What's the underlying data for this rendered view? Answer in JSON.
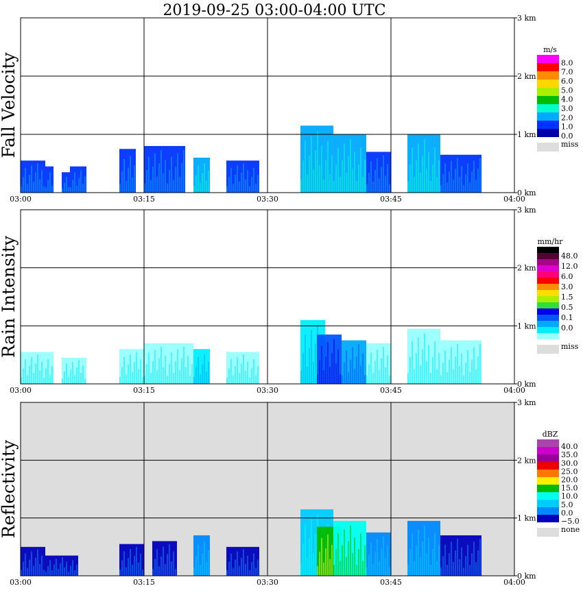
{
  "title": "2019-09-25   03:00-04:00 UTC",
  "time_ticks": [
    "03:00",
    "03:15",
    "03:30",
    "03:45",
    "04:00"
  ],
  "height_ticks": [
    "0 km",
    "1 km",
    "2 km",
    "3 km"
  ],
  "chart_data": [
    {
      "type": "heatmap",
      "ylabel": "Fall Velocity",
      "xlabel": "",
      "xlim": [
        "03:00",
        "04:00"
      ],
      "ylim_km": [
        0,
        3.0
      ],
      "grid": true,
      "colorbar": {
        "unit": "m/s",
        "labels": [
          "8.0",
          "7.0",
          "6.0",
          "5.0",
          "4.0",
          "3.0",
          "2.0",
          "1.0",
          "0.0"
        ],
        "colors": [
          "#ff00ff",
          "#ff0000",
          "#ff8c00",
          "#ffd700",
          "#aaee00",
          "#00bb00",
          "#00ffcc",
          "#00aaff",
          "#0033ff",
          "#0000aa"
        ],
        "missing_label": "miss",
        "missing_color": "#dddddd"
      },
      "echo_cells": [
        {
          "t0": "03:00",
          "t1": "03:03",
          "top_km": 0.55,
          "level": 1
        },
        {
          "t0": "03:03",
          "t1": "03:04",
          "top_km": 0.45,
          "level": 1
        },
        {
          "t0": "03:05",
          "t1": "03:06",
          "top_km": 0.35,
          "level": 1
        },
        {
          "t0": "03:06",
          "t1": "03:08",
          "top_km": 0.45,
          "level": 1
        },
        {
          "t0": "03:12",
          "t1": "03:14",
          "top_km": 0.75,
          "level": 1
        },
        {
          "t0": "03:15",
          "t1": "03:20",
          "top_km": 0.8,
          "level": 1
        },
        {
          "t0": "03:21",
          "t1": "03:23",
          "top_km": 0.6,
          "level": 2
        },
        {
          "t0": "03:25",
          "t1": "03:29",
          "top_km": 0.55,
          "level": 1
        },
        {
          "t0": "03:34",
          "t1": "03:38",
          "top_km": 1.15,
          "level": 2
        },
        {
          "t0": "03:38",
          "t1": "03:42",
          "top_km": 1.0,
          "level": 2
        },
        {
          "t0": "03:42",
          "t1": "03:45",
          "top_km": 0.7,
          "level": 1
        },
        {
          "t0": "03:47",
          "t1": "03:51",
          "top_km": 1.0,
          "level": 2
        },
        {
          "t0": "03:51",
          "t1": "03:56",
          "top_km": 0.65,
          "level": 1
        }
      ]
    },
    {
      "type": "heatmap",
      "ylabel": "Rain Intensity",
      "xlabel": "",
      "xlim": [
        "03:00",
        "04:00"
      ],
      "ylim_km": [
        0,
        3.0
      ],
      "grid": true,
      "colorbar": {
        "unit": "mm/hr",
        "labels": [
          "48.0",
          "12.0",
          "6.0",
          "3.0",
          "1.5",
          "0.5",
          "0.1",
          "0.0"
        ],
        "colors": [
          "#000000",
          "#550033",
          "#aa0088",
          "#dd00cc",
          "#ff0077",
          "#ff0000",
          "#ff8c00",
          "#ffdd00",
          "#aaee00",
          "#33dd33",
          "#0000ee",
          "#0055ff",
          "#00aaff",
          "#00eeff",
          "#99ffff"
        ],
        "missing_label": "miss",
        "missing_color": "#dddddd"
      },
      "echo_cells": [
        {
          "t0": "03:00",
          "t1": "03:04",
          "top_km": 0.55,
          "level": 0
        },
        {
          "t0": "03:05",
          "t1": "03:08",
          "top_km": 0.45,
          "level": 0
        },
        {
          "t0": "03:12",
          "t1": "03:15",
          "top_km": 0.6,
          "level": 0
        },
        {
          "t0": "03:15",
          "t1": "03:21",
          "top_km": 0.7,
          "level": 0
        },
        {
          "t0": "03:21",
          "t1": "03:23",
          "top_km": 0.6,
          "level": 1
        },
        {
          "t0": "03:25",
          "t1": "03:29",
          "top_km": 0.55,
          "level": 0
        },
        {
          "t0": "03:34",
          "t1": "03:37",
          "top_km": 1.1,
          "level": 1
        },
        {
          "t0": "03:36",
          "t1": "03:39",
          "top_km": 0.85,
          "level": 3
        },
        {
          "t0": "03:39",
          "t1": "03:42",
          "top_km": 0.75,
          "level": 2
        },
        {
          "t0": "03:42",
          "t1": "03:45",
          "top_km": 0.7,
          "level": 0
        },
        {
          "t0": "03:47",
          "t1": "03:51",
          "top_km": 0.95,
          "level": 0
        },
        {
          "t0": "03:51",
          "t1": "03:56",
          "top_km": 0.75,
          "level": 0
        }
      ]
    },
    {
      "type": "heatmap",
      "ylabel": "Reflectivity",
      "xlabel": "",
      "xlim": [
        "03:00",
        "04:00"
      ],
      "ylim_km": [
        0,
        3.0
      ],
      "grid": true,
      "colorbar": {
        "unit": "dBZ",
        "labels": [
          "40.0",
          "35.0",
          "30.0",
          "25.0",
          "20.0",
          "15.0",
          "10.0",
          "5.0",
          "0.0",
          "−5.0"
        ],
        "colors": [
          "#aa44aa",
          "#cc00cc",
          "#990099",
          "#ee0000",
          "#ff7700",
          "#ffee00",
          "#00bb00",
          "#00ffee",
          "#00ccff",
          "#0088ff",
          "#0000bb"
        ],
        "missing_label": "none",
        "missing_color": "#dddddd"
      },
      "echo_cells": [
        {
          "t0": "03:00",
          "t1": "03:03",
          "top_km": 0.5,
          "level": 0
        },
        {
          "t0": "03:03",
          "t1": "03:07",
          "top_km": 0.35,
          "level": 0
        },
        {
          "t0": "03:12",
          "t1": "03:15",
          "top_km": 0.55,
          "level": 0
        },
        {
          "t0": "03:16",
          "t1": "03:19",
          "top_km": 0.6,
          "level": 0
        },
        {
          "t0": "03:21",
          "t1": "03:23",
          "top_km": 0.7,
          "level": 1
        },
        {
          "t0": "03:25",
          "t1": "03:29",
          "top_km": 0.5,
          "level": 0
        },
        {
          "t0": "03:34",
          "t1": "03:38",
          "top_km": 1.15,
          "level": 2
        },
        {
          "t0": "03:36",
          "t1": "03:39",
          "top_km": 0.85,
          "level": 4
        },
        {
          "t0": "03:38",
          "t1": "03:42",
          "top_km": 0.95,
          "level": 3
        },
        {
          "t0": "03:42",
          "t1": "03:45",
          "top_km": 0.75,
          "level": 1
        },
        {
          "t0": "03:47",
          "t1": "03:51",
          "top_km": 0.95,
          "level": 1
        },
        {
          "t0": "03:51",
          "t1": "03:56",
          "top_km": 0.7,
          "level": 0
        }
      ]
    }
  ]
}
